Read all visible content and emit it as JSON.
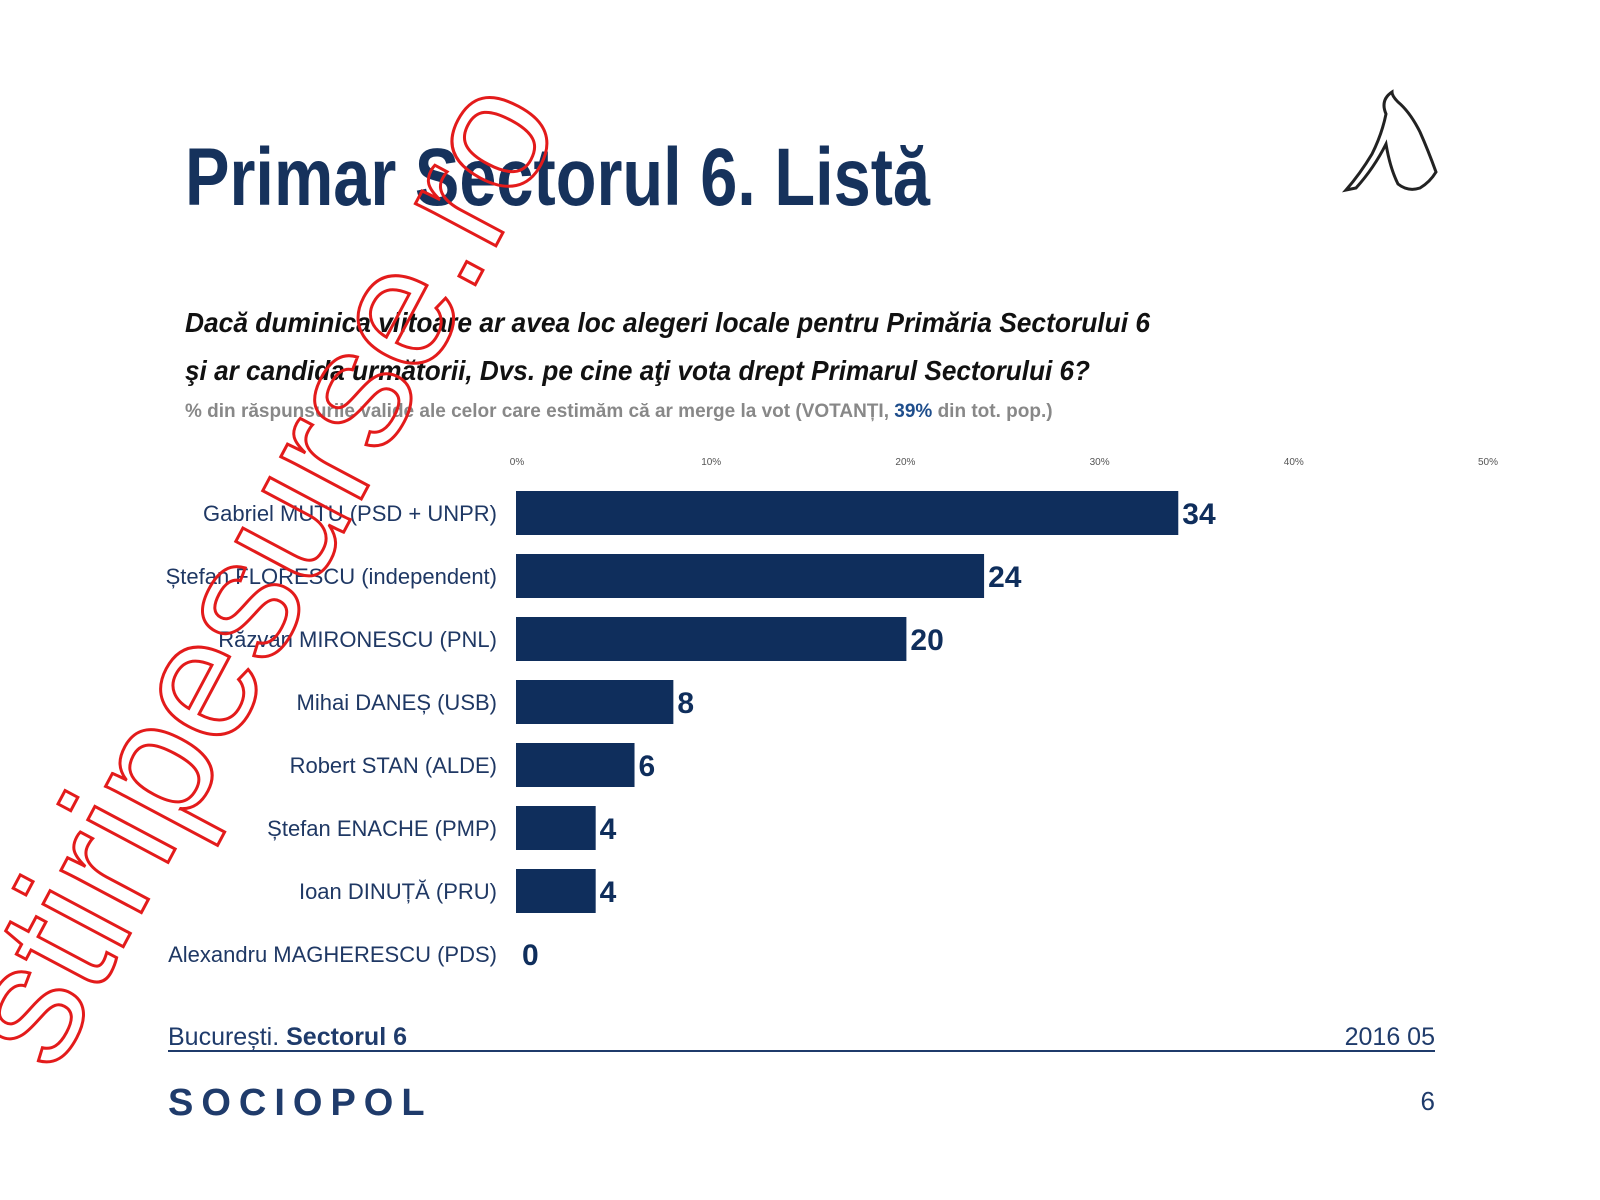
{
  "chart_data": {
    "type": "hbar",
    "title": "Primar Sectorul 6. Listă",
    "question": [
      "Dacă duminica viitoare ar avea loc alegeri locale pentru Primăria Sectorului 6",
      "şi ar candida următorii, Dvs. pe cine aţi vota drept Primarul Sectorului 6?"
    ],
    "subtitle": [
      "% din răspunsurile valide ale celor care estimăm că ar merge la vot (VOTANȚI, ",
      "39%",
      " din tot. pop.)"
    ],
    "categories": [
      "Gabriel MUTU (PSD + UNPR)",
      "Ștefan FLORESCU (independent)",
      "Răzvan MIRONESCU (PNL)",
      "Mihai DANEȘ (USB)",
      "Robert STAN (ALDE)",
      "Ștefan ENACHE (PMP)",
      "Ioan DINUȚĂ (PRU)",
      "Alexandru MAGHERESCU (PDS)"
    ],
    "values": [
      34,
      24,
      20,
      8,
      6,
      4,
      4,
      0
    ],
    "color": "#0f2e5c",
    "xlim": [
      0,
      50
    ],
    "xticks": [
      {
        "value": 0,
        "label": "0%"
      },
      {
        "value": 10,
        "label": "10%"
      },
      {
        "value": 20,
        "label": "20%"
      },
      {
        "value": 30,
        "label": "30%"
      },
      {
        "value": 40,
        "label": "40%"
      },
      {
        "value": 50,
        "label": "50%"
      }
    ],
    "grid": false,
    "footer": {
      "location": "București. ",
      "sector": "Sectorul 6",
      "date": "2016 05",
      "brand": "SOCIOPOL",
      "page": "6"
    },
    "watermark": "stiripesurse.ro"
  }
}
